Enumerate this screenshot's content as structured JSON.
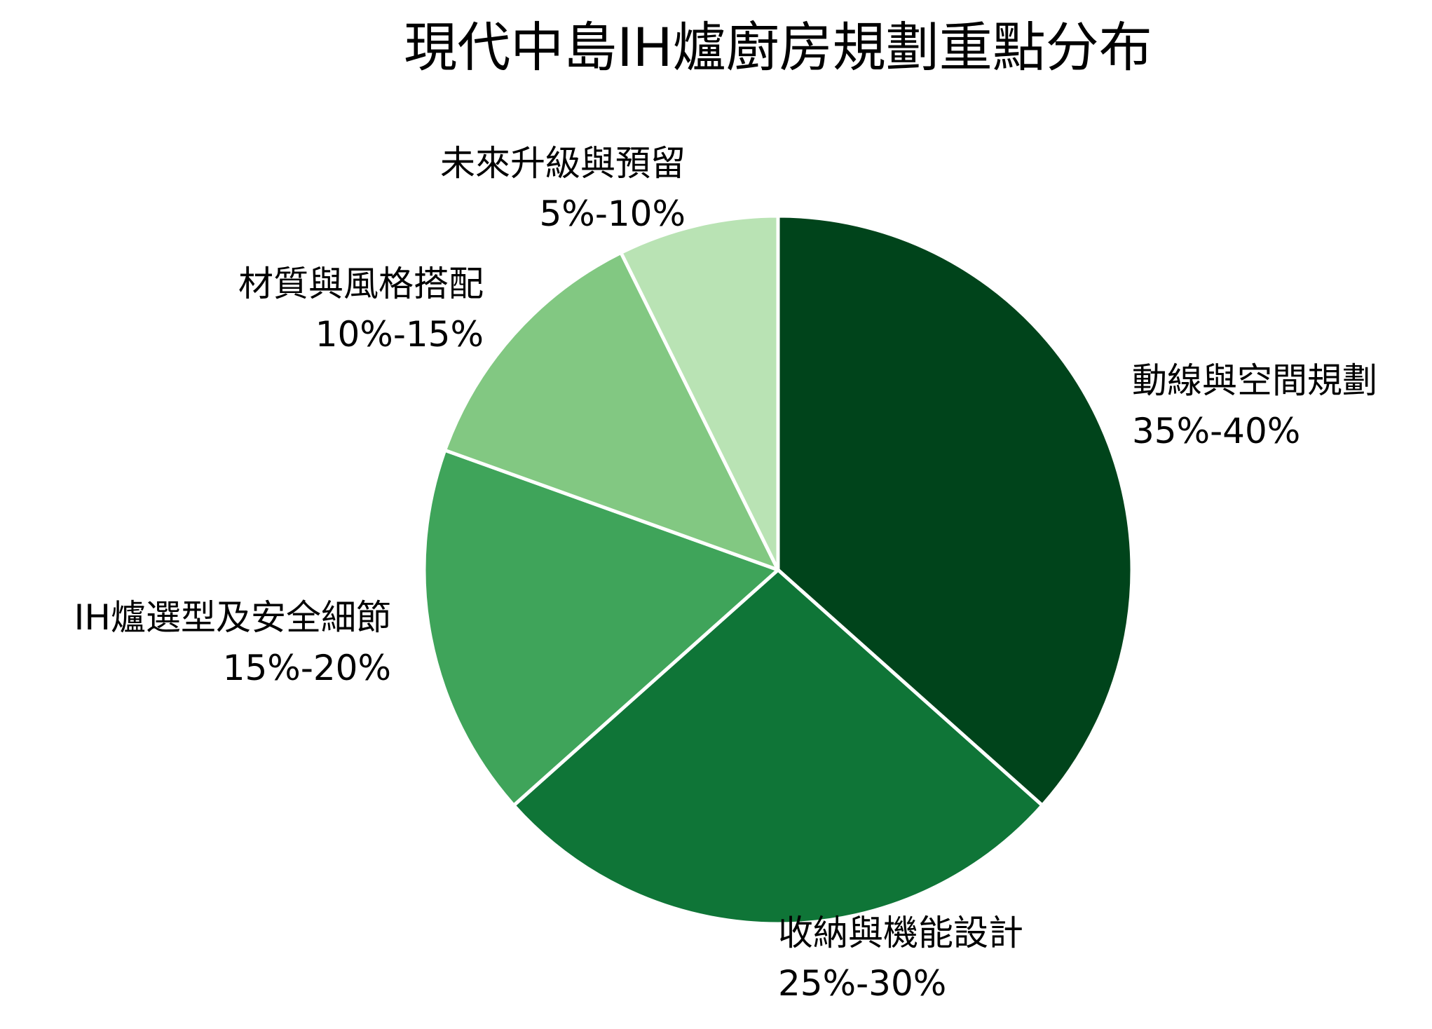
{
  "chart_data": {
    "type": "pie",
    "title": "現代中島IH爐廚房規劃重點分布",
    "slices": [
      {
        "label": "動線與空間規劃",
        "value_text": "35%-40%",
        "value": 37.5,
        "color": "#00441b"
      },
      {
        "label": "收納與機能設計",
        "value_text": "25%-30%",
        "value": 27.5,
        "color": "#0f7537"
      },
      {
        "label": "IH爐選型及安全細節",
        "value_text": "15%-20%",
        "value": 17.5,
        "color": "#3fa45a"
      },
      {
        "label": "材質與風格搭配",
        "value_text": "10%-15%",
        "value": 12.5,
        "color": "#82c882"
      },
      {
        "label": "未來升級與預留",
        "value_text": "5%-10%",
        "value": 7.5,
        "color": "#b9e3b4"
      }
    ],
    "start_angle": "12 o'clock",
    "direction": "clockwise",
    "legend": "none"
  }
}
